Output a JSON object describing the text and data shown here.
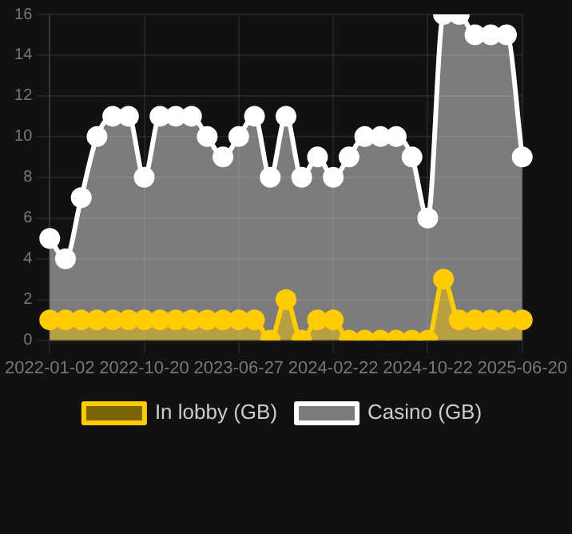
{
  "chart_data": {
    "type": "area",
    "categories": [
      "2022-01-02",
      null,
      null,
      null,
      null,
      null,
      "2022-10-20",
      null,
      null,
      null,
      null,
      null,
      "2023-06-27",
      null,
      null,
      null,
      null,
      null,
      "2024-02-22",
      null,
      null,
      null,
      null,
      null,
      "2024-10-22",
      null,
      null,
      null,
      null,
      null,
      "2025-06-20"
    ],
    "series": [
      {
        "name": "In lobby (GB)",
        "color": "#ffcc00",
        "values": [
          1,
          1,
          1,
          1,
          1,
          1,
          1,
          1,
          1,
          1,
          1,
          1,
          1,
          1,
          0,
          2,
          0,
          1,
          1,
          0,
          0,
          0,
          0,
          0,
          0,
          3,
          1,
          1,
          1,
          1,
          1
        ]
      },
      {
        "name": "Casino (GB)",
        "color": "#ffffff",
        "values": [
          5,
          4,
          7,
          10,
          11,
          11,
          8,
          11,
          11,
          11,
          10,
          9,
          10,
          11,
          8,
          11,
          8,
          9,
          8,
          9,
          10,
          10,
          10,
          9,
          6,
          16,
          16,
          15,
          15,
          15,
          9
        ]
      }
    ],
    "ylim": [
      0,
      16
    ],
    "yticks": [
      0,
      2,
      4,
      6,
      8,
      10,
      12,
      14,
      16
    ],
    "grid": true,
    "legend": "bottom",
    "marker": "circle",
    "line_style": "solid"
  }
}
